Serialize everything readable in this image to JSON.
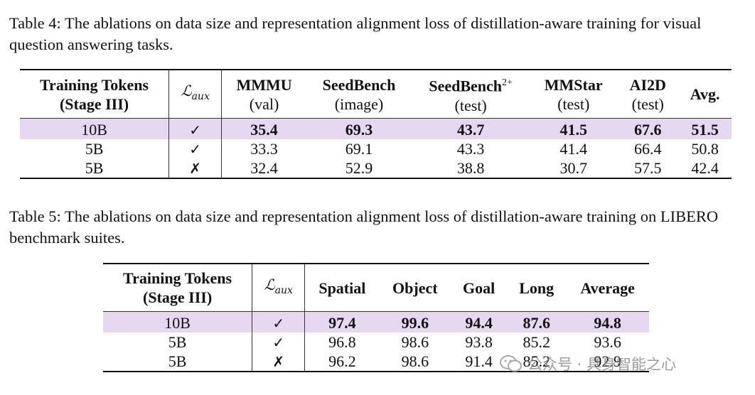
{
  "table4": {
    "caption": "Table 4: The ablations on data size and representation alignment loss of distillation-aware training for visual question answering tasks.",
    "header": {
      "training_tokens_line1": "Training Tokens",
      "training_tokens_line2": "(Stage III)",
      "laux_symbol": "ℒ",
      "laux_sub": "aux",
      "cols": [
        {
          "name": "MMMU",
          "sub": "(val)"
        },
        {
          "name": "SeedBench",
          "sub": "(image)"
        },
        {
          "name": "SeedBench",
          "sup": "2+",
          "sub": "(test)"
        },
        {
          "name": "MMStar",
          "sub": "(test)"
        },
        {
          "name": "AI2D",
          "sub": "(test)"
        },
        {
          "name": "Avg."
        }
      ]
    },
    "rows": [
      {
        "tokens": "10B",
        "aux": "✓",
        "values": [
          "35.4",
          "69.3",
          "43.7",
          "41.5",
          "67.6",
          "51.5"
        ],
        "highlight": true
      },
      {
        "tokens": "5B",
        "aux": "✓",
        "values": [
          "33.3",
          "69.1",
          "43.3",
          "41.4",
          "66.4",
          "50.8"
        ]
      },
      {
        "tokens": "5B",
        "aux": "✗",
        "values": [
          "32.4",
          "52.9",
          "38.8",
          "30.7",
          "57.5",
          "42.4"
        ]
      }
    ]
  },
  "table5": {
    "caption": "Table 5: The ablations on data size and representation alignment loss of distillation-aware training on LIBERO benchmark suites.",
    "header": {
      "training_tokens_line1": "Training Tokens",
      "training_tokens_line2": "(Stage III)",
      "laux_symbol": "ℒ",
      "laux_sub": "aux",
      "cols": [
        "Spatial",
        "Object",
        "Goal",
        "Long",
        "Average"
      ]
    },
    "rows": [
      {
        "tokens": "10B",
        "aux": "✓",
        "values": [
          "97.4",
          "99.6",
          "94.4",
          "87.6",
          "94.8"
        ],
        "highlight": true
      },
      {
        "tokens": "5B",
        "aux": "✓",
        "values": [
          "96.8",
          "98.6",
          "93.8",
          "85.2",
          "93.6"
        ]
      },
      {
        "tokens": "5B",
        "aux": "✗",
        "values": [
          "96.2",
          "98.6",
          "91.4",
          "85.2",
          "92.9"
        ]
      }
    ]
  },
  "watermark": {
    "text": "公众号 · 具身智能之心",
    "icon": "wechat-icon"
  },
  "colors": {
    "highlight": "#e6d8ee",
    "text": "#111111",
    "watermark": "#8a8a8a"
  }
}
